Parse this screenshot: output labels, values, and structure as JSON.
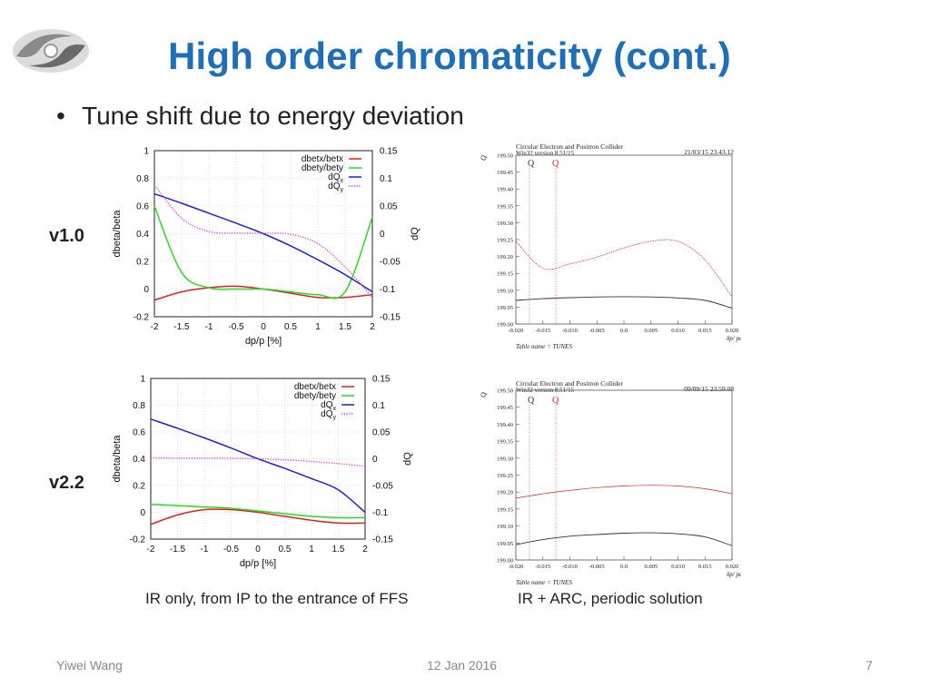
{
  "slide": {
    "title": "High order chromaticity (cont.)",
    "bullet": "Tune shift due to energy deviation",
    "row_labels": [
      "v1.0",
      "v2.2"
    ],
    "caption_left": "IR only, from IP to the entrance of FFS",
    "caption_right": "IR + ARC, periodic solution",
    "footer_author": "Yiwei Wang",
    "footer_date": "12 Jan 2016",
    "footer_page": "7"
  },
  "colors": {
    "title": "#1f6fb8",
    "dbetx": "#e02020",
    "dbety": "#22dd22",
    "dQx": "#2222cc",
    "dQy": "#dd33dd",
    "mad_qx": "#333333",
    "mad_qy": "#e02020"
  },
  "chart_data": [
    {
      "type": "line",
      "id": "v1.0-IR",
      "xlabel": "dp/p [%]",
      "ylabel": "dbeta/beta",
      "y2label": "dQ",
      "xlim": [
        -2,
        2
      ],
      "ylim": [
        -0.2,
        1
      ],
      "y2lim": [
        -0.15,
        0.15
      ],
      "xticks": [
        "-2",
        "-1.5",
        "-1",
        "-0.5",
        "0",
        "0.5",
        "1",
        "1.5",
        "2"
      ],
      "yticks": [
        "-0.2",
        "0",
        "0.2",
        "0.4",
        "0.6",
        "0.8",
        "1"
      ],
      "y2ticks": [
        "-0.15",
        "-0.1",
        "-0.05",
        "0",
        "0.05",
        "0.1",
        "0.15"
      ],
      "grid": true,
      "legend_position": "top-right",
      "x": [
        -2,
        -1.5,
        -1,
        -0.5,
        0,
        0.5,
        1,
        1.5,
        2
      ],
      "series": [
        {
          "name": "dbetx/betx",
          "axis": "left",
          "values": [
            -0.08,
            -0.02,
            0.01,
            0.02,
            0.0,
            -0.03,
            -0.06,
            -0.06,
            -0.04
          ]
        },
        {
          "name": "dbety/bety",
          "axis": "left",
          "values": [
            0.6,
            0.12,
            0.01,
            0.0,
            0.0,
            -0.02,
            -0.04,
            -0.02,
            0.52
          ]
        },
        {
          "name": "dQx",
          "axis": "right",
          "values": [
            0.072,
            0.055,
            0.037,
            0.019,
            0.0,
            -0.022,
            -0.047,
            -0.074,
            -0.105
          ]
        },
        {
          "name": "dQy",
          "axis": "right",
          "values": [
            0.088,
            0.028,
            0.004,
            0.001,
            0.001,
            -0.001,
            -0.018,
            -0.06,
            -0.115
          ]
        }
      ]
    },
    {
      "type": "line",
      "id": "v2.2-IR",
      "xlabel": "dp/p [%]",
      "ylabel": "dbeta/beta",
      "y2label": "dQ",
      "xlim": [
        -2,
        2
      ],
      "ylim": [
        -0.2,
        1
      ],
      "y2lim": [
        -0.15,
        0.15
      ],
      "xticks": [
        "-2",
        "-1.5",
        "-1",
        "-0.5",
        "0",
        "0.5",
        "1",
        "1.5",
        "2"
      ],
      "yticks": [
        "-0.2",
        "0",
        "0.2",
        "0.4",
        "0.6",
        "0.8",
        "1"
      ],
      "y2ticks": [
        "-0.15",
        "-0.1",
        "-0.05",
        "0",
        "0.05",
        "0.1",
        "0.15"
      ],
      "grid": true,
      "legend_position": "top-right",
      "x": [
        -2,
        -1.5,
        -1,
        -0.5,
        0,
        0.5,
        1,
        1.5,
        2
      ],
      "series": [
        {
          "name": "dbetx/betx",
          "axis": "left",
          "values": [
            -0.09,
            -0.02,
            0.02,
            0.02,
            0.0,
            -0.03,
            -0.06,
            -0.08,
            -0.08
          ]
        },
        {
          "name": "dbety/bety",
          "axis": "left",
          "values": [
            0.06,
            0.05,
            0.04,
            0.03,
            0.01,
            -0.01,
            -0.03,
            -0.04,
            -0.04
          ]
        },
        {
          "name": "dQx",
          "axis": "right",
          "values": [
            0.074,
            0.057,
            0.039,
            0.02,
            0.0,
            -0.018,
            -0.037,
            -0.058,
            -0.1
          ]
        },
        {
          "name": "dQy",
          "axis": "right",
          "values": [
            0.002,
            0.001,
            0.001,
            0.001,
            0.0,
            -0.002,
            -0.005,
            -0.009,
            -0.014
          ]
        }
      ]
    },
    {
      "type": "line",
      "id": "v1.0-MAD",
      "header_line1": "Circular Electron and Positron Collider",
      "header_line2": "Win32 version 8.51/15",
      "timestamp": "21/03/15  23.43.12",
      "table_name": "Table name = TUNES",
      "xlabel": "δp/ pc",
      "ylabel": "Q",
      "legend": [
        "Q",
        "Q"
      ],
      "xlim": [
        -0.02,
        0.02
      ],
      "ylim": [
        199.0,
        199.5
      ],
      "xticks": [
        "-0.020",
        "-0.015",
        "-0.010",
        "-0.005",
        "0.0",
        "0.005",
        "0.010",
        "0.015",
        "0.020"
      ],
      "yticks": [
        "199.00",
        "199.05",
        "199.10",
        "199.15",
        "199.20",
        "199.25",
        "199.30",
        "199.35",
        "199.40",
        "199.45",
        "199.50"
      ],
      "x": [
        -0.02,
        -0.015,
        -0.01,
        -0.005,
        0.0,
        0.005,
        0.01,
        0.015,
        0.02
      ],
      "series": [
        {
          "values": [
            199.07,
            199.075,
            199.078,
            199.08,
            199.081,
            199.08,
            199.077,
            199.07,
            199.047
          ]
        },
        {
          "values": [
            199.245,
            199.165,
            199.178,
            199.198,
            199.225,
            199.245,
            199.245,
            199.19,
            199.08
          ]
        }
      ]
    },
    {
      "type": "line",
      "id": "v2.2-MAD",
      "header_line1": "Circular Electron and Positron Collider",
      "header_line2": "Win32 version 8.51/15",
      "timestamp": "09/09/15  23.59.08",
      "table_name": "Table name = TUNES",
      "xlabel": "δp/ pc",
      "ylabel": "Q",
      "legend": [
        "Q",
        "Q"
      ],
      "xlim": [
        -0.02,
        0.02
      ],
      "ylim": [
        199.0,
        199.5
      ],
      "xticks": [
        "-0.020",
        "-0.015",
        "-0.010",
        "-0.005",
        "0.0",
        "0.005",
        "0.010",
        "0.015",
        "0.020"
      ],
      "yticks": [
        "199.00",
        "199.05",
        "199.10",
        "199.15",
        "199.20",
        "199.25",
        "199.30",
        "199.35",
        "199.40",
        "199.45",
        "199.50"
      ],
      "x": [
        -0.02,
        -0.015,
        -0.01,
        -0.005,
        0.0,
        0.005,
        0.01,
        0.015,
        0.02
      ],
      "series": [
        {
          "values": [
            199.045,
            199.06,
            199.07,
            199.075,
            199.079,
            199.08,
            199.077,
            199.068,
            199.042
          ]
        },
        {
          "values": [
            199.182,
            199.195,
            199.205,
            199.213,
            199.218,
            199.22,
            199.218,
            199.21,
            199.195
          ]
        }
      ]
    }
  ]
}
